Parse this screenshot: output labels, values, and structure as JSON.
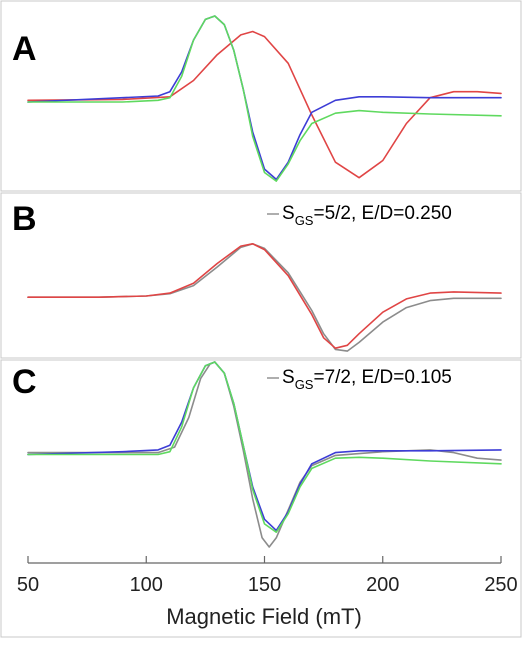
{
  "chart_data": {
    "type": "line",
    "xlabel": "Magnetic Field (mT)",
    "ylabel": "",
    "xlim": [
      50,
      250
    ],
    "xticks": [
      50,
      100,
      150,
      200,
      250
    ],
    "grid": false,
    "colors": {
      "blue": "#3d3dd6",
      "green": "#5fd95f",
      "red": "#e04545",
      "gray": "#8c8c8c"
    },
    "panels": [
      {
        "label": "A",
        "ylim": [
          -1,
          1
        ],
        "simulation_label": {
          "main": "",
          "sub": "",
          "rest": ""
        },
        "series": [
          {
            "color": "red",
            "x": [
              50,
              90,
              110,
              120,
              130,
              140,
              145,
              150,
              160,
              170,
              180,
              190,
              200,
              210,
              220,
              230,
              240,
              250
            ],
            "y": [
              0.02,
              0.03,
              0.06,
              0.25,
              0.55,
              0.78,
              0.82,
              0.76,
              0.45,
              -0.15,
              -0.7,
              -0.88,
              -0.68,
              -0.25,
              0.05,
              0.12,
              0.12,
              0.1
            ]
          },
          {
            "color": "blue",
            "x": [
              50,
              90,
              105,
              110,
              115,
              120,
              125,
              129,
              133,
              137,
              141,
              145,
              150,
              155,
              160,
              165,
              170,
              180,
              190,
              200,
              220,
              250
            ],
            "y": [
              0.0,
              0.05,
              0.07,
              0.12,
              0.35,
              0.72,
              0.96,
              1.0,
              0.9,
              0.6,
              0.15,
              -0.35,
              -0.78,
              -0.9,
              -0.7,
              -0.38,
              -0.12,
              0.02,
              0.06,
              0.06,
              0.05,
              0.05
            ]
          },
          {
            "color": "green",
            "x": [
              50,
              90,
              105,
              110,
              115,
              120,
              125,
              129,
              133,
              137,
              141,
              145,
              150,
              155,
              160,
              165,
              170,
              180,
              190,
              200,
              220,
              250
            ],
            "y": [
              0.0,
              0.0,
              0.02,
              0.05,
              0.3,
              0.72,
              0.96,
              1.0,
              0.9,
              0.6,
              0.15,
              -0.4,
              -0.82,
              -0.92,
              -0.72,
              -0.45,
              -0.25,
              -0.13,
              -0.1,
              -0.12,
              -0.14,
              -0.16
            ]
          }
        ]
      },
      {
        "label": "B",
        "ylim": [
          -1,
          1
        ],
        "simulation_label": {
          "main": "S",
          "sub": "GS",
          "rest": "=5/2, E/D=0.250"
        },
        "series": [
          {
            "color": "gray",
            "x": [
              50,
              80,
              100,
              110,
              120,
              130,
              140,
              145,
              150,
              160,
              170,
              175,
              180,
              185,
              190,
              200,
              210,
              220,
              230,
              250
            ],
            "y": [
              -0.02,
              -0.02,
              0.0,
              0.04,
              0.18,
              0.5,
              0.84,
              0.9,
              0.82,
              0.4,
              -0.25,
              -0.65,
              -0.92,
              -0.95,
              -0.8,
              -0.45,
              -0.2,
              -0.08,
              -0.04,
              -0.04
            ]
          },
          {
            "color": "red",
            "x": [
              50,
              80,
              100,
              110,
              120,
              130,
              140,
              145,
              150,
              160,
              170,
              175,
              180,
              185,
              190,
              200,
              210,
              220,
              230,
              250
            ],
            "y": [
              -0.02,
              -0.02,
              0.0,
              0.05,
              0.22,
              0.56,
              0.86,
              0.9,
              0.8,
              0.35,
              -0.32,
              -0.72,
              -0.9,
              -0.85,
              -0.65,
              -0.28,
              -0.05,
              0.05,
              0.07,
              0.05
            ]
          }
        ]
      },
      {
        "label": "C",
        "ylim": [
          -1,
          1
        ],
        "simulation_label": {
          "main": "S",
          "sub": "GS",
          "rest": "=7/2, E/D=0.105"
        },
        "series": [
          {
            "color": "gray",
            "x": [
              50,
              90,
              105,
              112,
              118,
              123,
              127,
              129,
              133,
              137,
              141,
              145,
              149,
              152,
              155,
              160,
              165,
              170,
              180,
              190,
              200,
              210,
              220,
              230,
              240,
              250
            ],
            "y": [
              0.02,
              0.02,
              0.02,
              0.08,
              0.4,
              0.82,
              0.98,
              1.0,
              0.88,
              0.52,
              0.05,
              -0.48,
              -0.9,
              -1.0,
              -0.9,
              -0.6,
              -0.3,
              -0.12,
              -0.01,
              0.01,
              0.03,
              0.04,
              0.05,
              0.02,
              -0.04,
              -0.06
            ]
          },
          {
            "color": "blue",
            "x": [
              50,
              90,
              105,
              110,
              115,
              120,
              125,
              129,
              133,
              137,
              141,
              145,
              150,
              155,
              160,
              165,
              170,
              180,
              190,
              200,
              220,
              250
            ],
            "y": [
              0.0,
              0.03,
              0.05,
              0.1,
              0.35,
              0.72,
              0.96,
              1.0,
              0.88,
              0.55,
              0.1,
              -0.35,
              -0.7,
              -0.82,
              -0.62,
              -0.32,
              -0.1,
              0.02,
              0.04,
              0.04,
              0.04,
              0.05
            ]
          },
          {
            "color": "green",
            "x": [
              50,
              90,
              105,
              110,
              115,
              120,
              125,
              129,
              133,
              137,
              141,
              145,
              150,
              155,
              160,
              165,
              170,
              180,
              190,
              200,
              220,
              250
            ],
            "y": [
              0.0,
              0.0,
              0.0,
              0.03,
              0.3,
              0.72,
              0.96,
              1.0,
              0.88,
              0.55,
              0.1,
              -0.38,
              -0.75,
              -0.84,
              -0.64,
              -0.35,
              -0.15,
              -0.04,
              -0.03,
              -0.04,
              -0.07,
              -0.1
            ]
          }
        ]
      }
    ]
  }
}
